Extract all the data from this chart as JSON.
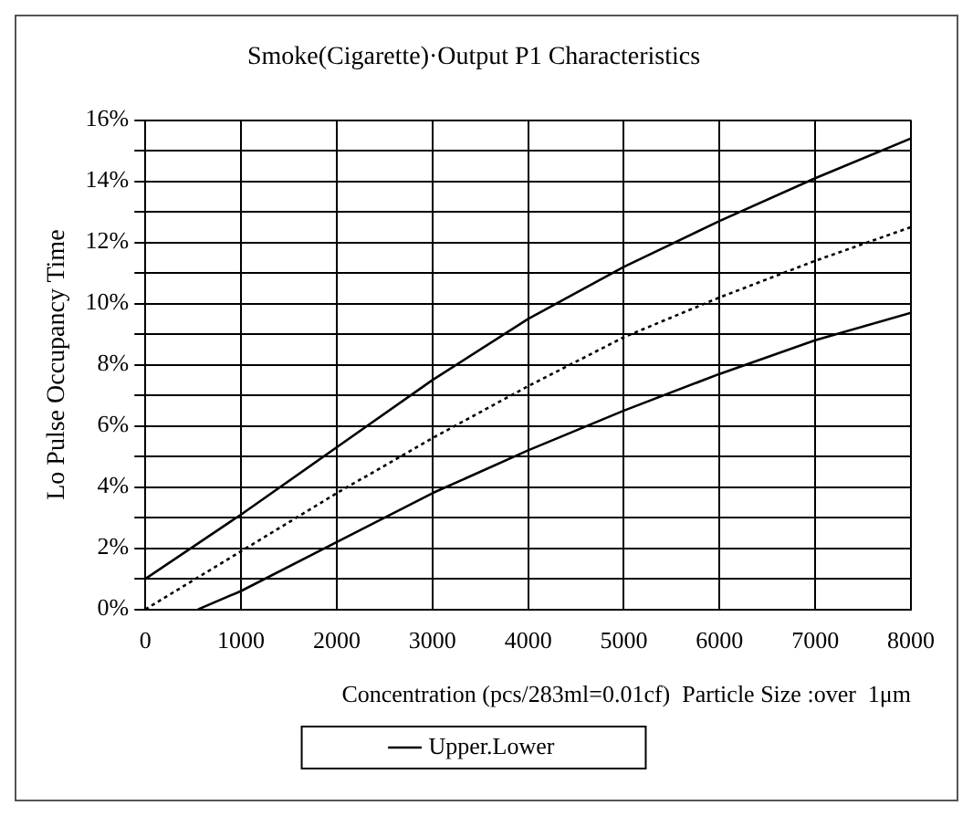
{
  "chart_data": {
    "type": "line",
    "title": "Smoke(Cigarette)·Output P1 Characteristics",
    "xlabel": "Concentration (pcs/283ml=0.01cf)  Particle Size :over  1μm",
    "ylabel": "Lo Pulse Occupancy Time",
    "xlim": [
      0,
      8000
    ],
    "xticks": [
      0,
      1000,
      2000,
      3000,
      4000,
      5000,
      6000,
      7000,
      8000
    ],
    "ylim": [
      0,
      16
    ],
    "yticks": [
      {
        "value": 0,
        "label": "0%"
      },
      {
        "value": 1,
        "label": null
      },
      {
        "value": 2,
        "label": "2%"
      },
      {
        "value": 3,
        "label": null
      },
      {
        "value": 4,
        "label": "4%"
      },
      {
        "value": 5,
        "label": null
      },
      {
        "value": 6,
        "label": "6%"
      },
      {
        "value": 7,
        "label": null
      },
      {
        "value": 8,
        "label": "8%"
      },
      {
        "value": 9,
        "label": null
      },
      {
        "value": 10,
        "label": "10%"
      },
      {
        "value": 11,
        "label": null
      },
      {
        "value": 12,
        "label": "12%"
      },
      {
        "value": 13,
        "label": null
      },
      {
        "value": 14,
        "label": "14%"
      },
      {
        "value": 15,
        "label": null
      },
      {
        "value": 16,
        "label": "16%"
      }
    ],
    "grid": true,
    "legend": "bottom",
    "marker": "none",
    "series": [
      {
        "name": "Upper.Lower",
        "color": "#000000",
        "line_style": "solid",
        "x": [
          0,
          1000,
          2000,
          3000,
          4000,
          5000,
          6000,
          7000,
          8000
        ],
        "values": [
          1,
          3.1,
          5.3,
          7.5,
          9.5,
          11.2,
          12.7,
          14.1,
          15.4
        ]
      },
      {
        "color": "#000000",
        "line_style": "dotted",
        "x": [
          0,
          1000,
          2000,
          3000,
          4000,
          5000,
          6000,
          7000,
          8000
        ],
        "values": [
          0,
          1.9,
          3.8,
          5.6,
          7.3,
          8.9,
          10.2,
          11.4,
          12.5
        ]
      },
      {
        "color": "#000000",
        "line_style": "solid",
        "x": [
          550,
          1000,
          2000,
          3000,
          4000,
          5000,
          6000,
          7000,
          8000
        ],
        "values": [
          0,
          0.6,
          2.2,
          3.8,
          5.2,
          6.5,
          7.7,
          8.8,
          9.7
        ]
      }
    ]
  }
}
